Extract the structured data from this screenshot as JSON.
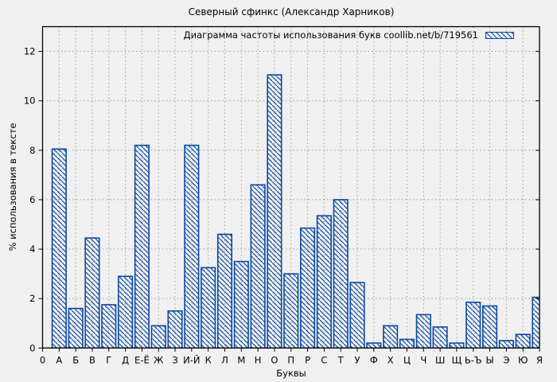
{
  "chart_data": {
    "type": "bar",
    "title": "Северный сфинкс (Александр Харников)",
    "legend_label": "Диаграмма частоты использования букв coollib.net/b/719561",
    "legend_position": "top-right-inside",
    "xlabel": "Буквы",
    "ylabel": "% использования в тексте",
    "categories": [
      "0",
      "А",
      "Б",
      "В",
      "Г",
      "Д",
      "Е-Ё",
      "Ж",
      "З",
      "И-Й",
      "К",
      "Л",
      "М",
      "Н",
      "О",
      "П",
      "Р",
      "С",
      "Т",
      "У",
      "Ф",
      "Х",
      "Ц",
      "Ч",
      "Ш",
      "Щ",
      "Ь-Ъ",
      "Ы",
      "Э",
      "Ю",
      "Я"
    ],
    "values": [
      null,
      8.05,
      1.6,
      4.45,
      1.75,
      2.9,
      8.2,
      0.9,
      1.5,
      8.2,
      3.25,
      4.6,
      3.5,
      6.6,
      11.05,
      3.0,
      4.85,
      5.35,
      6.0,
      2.65,
      0.2,
      0.9,
      0.35,
      1.35,
      0.85,
      0.2,
      1.85,
      1.7,
      0.3,
      0.55,
      2.05
    ],
    "yticks": [
      0,
      2,
      4,
      6,
      8,
      10,
      12
    ],
    "ylim": [
      0,
      13
    ],
    "grid": true,
    "bar_hatch": "diagonal-backslash",
    "colors": {
      "bar": "#0a48a2",
      "grid": "#a0a0a0",
      "axis": "#000000",
      "background": "#f0f0f0",
      "text": "#000000"
    }
  }
}
